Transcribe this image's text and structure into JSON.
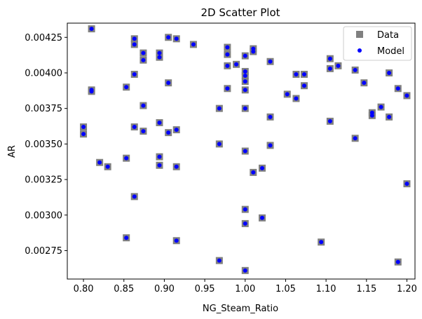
{
  "chart_data": {
    "type": "scatter",
    "title": "2D Scatter Plot",
    "xlabel": "NG_Steam_Ratio",
    "ylabel": "AR",
    "xlim": [
      0.78,
      1.21
    ],
    "ylim": [
      0.00255,
      0.00435
    ],
    "xticks": [
      0.8,
      0.85,
      0.9,
      0.95,
      1.0,
      1.05,
      1.1,
      1.15,
      1.2
    ],
    "xtick_labels": [
      "0.80",
      "0.85",
      "0.90",
      "0.95",
      "1.00",
      "1.05",
      "1.10",
      "1.15",
      "1.20"
    ],
    "yticks": [
      0.00275,
      0.003,
      0.00325,
      0.0035,
      0.00375,
      0.004,
      0.00425
    ],
    "ytick_labels": [
      "0.00275",
      "0.00300",
      "0.00325",
      "0.00350",
      "0.00375",
      "0.00400",
      "0.00425"
    ],
    "grid": false,
    "legend_position": "top-right",
    "series": [
      {
        "name": "Data",
        "marker": "square",
        "color": "#808080"
      },
      {
        "name": "Model",
        "marker": "circle",
        "color": "#0000ff"
      }
    ],
    "points": [
      [
        0.81,
        0.00431
      ],
      [
        0.81,
        0.00388
      ],
      [
        0.81,
        0.00387
      ],
      [
        0.8,
        0.00362
      ],
      [
        0.8,
        0.00357
      ],
      [
        0.82,
        0.00337
      ],
      [
        0.83,
        0.00334
      ],
      [
        0.853,
        0.0039
      ],
      [
        0.853,
        0.0034
      ],
      [
        0.853,
        0.00284
      ],
      [
        0.863,
        0.00424
      ],
      [
        0.863,
        0.0042
      ],
      [
        0.863,
        0.00399
      ],
      [
        0.863,
        0.00362
      ],
      [
        0.863,
        0.00313
      ],
      [
        0.874,
        0.00414
      ],
      [
        0.874,
        0.00409
      ],
      [
        0.874,
        0.00377
      ],
      [
        0.874,
        0.00359
      ],
      [
        0.894,
        0.00414
      ],
      [
        0.894,
        0.00411
      ],
      [
        0.894,
        0.00365
      ],
      [
        0.894,
        0.00341
      ],
      [
        0.894,
        0.00335
      ],
      [
        0.905,
        0.00425
      ],
      [
        0.905,
        0.00393
      ],
      [
        0.905,
        0.00358
      ],
      [
        0.915,
        0.00424
      ],
      [
        0.915,
        0.0036
      ],
      [
        0.915,
        0.00334
      ],
      [
        0.915,
        0.00282
      ],
      [
        0.936,
        0.0042
      ],
      [
        0.968,
        0.00375
      ],
      [
        0.968,
        0.0035
      ],
      [
        0.968,
        0.00268
      ],
      [
        0.978,
        0.00418
      ],
      [
        0.978,
        0.00413
      ],
      [
        0.978,
        0.00405
      ],
      [
        0.978,
        0.00389
      ],
      [
        0.989,
        0.00406
      ],
      [
        1.0,
        0.00412
      ],
      [
        1.0,
        0.00401
      ],
      [
        1.0,
        0.00398
      ],
      [
        1.0,
        0.00394
      ],
      [
        1.0,
        0.00388
      ],
      [
        1.0,
        0.00375
      ],
      [
        1.0,
        0.00345
      ],
      [
        1.0,
        0.00304
      ],
      [
        1.0,
        0.00294
      ],
      [
        1.0,
        0.00261
      ],
      [
        1.01,
        0.00417
      ],
      [
        1.01,
        0.00415
      ],
      [
        1.01,
        0.0033
      ],
      [
        1.021,
        0.00333
      ],
      [
        1.021,
        0.00298
      ],
      [
        1.031,
        0.00408
      ],
      [
        1.031,
        0.00369
      ],
      [
        1.031,
        0.00349
      ],
      [
        1.052,
        0.00385
      ],
      [
        1.063,
        0.00399
      ],
      [
        1.063,
        0.00382
      ],
      [
        1.073,
        0.00399
      ],
      [
        1.073,
        0.00391
      ],
      [
        1.094,
        0.00281
      ],
      [
        1.105,
        0.0041
      ],
      [
        1.105,
        0.00403
      ],
      [
        1.105,
        0.00366
      ],
      [
        1.115,
        0.00405
      ],
      [
        1.136,
        0.00402
      ],
      [
        1.136,
        0.00354
      ],
      [
        1.147,
        0.00393
      ],
      [
        1.157,
        0.00372
      ],
      [
        1.157,
        0.0037
      ],
      [
        1.168,
        0.00376
      ],
      [
        1.178,
        0.004
      ],
      [
        1.178,
        0.00369
      ],
      [
        1.189,
        0.00389
      ],
      [
        1.189,
        0.00267
      ],
      [
        1.2,
        0.00384
      ],
      [
        1.2,
        0.00322
      ]
    ]
  }
}
